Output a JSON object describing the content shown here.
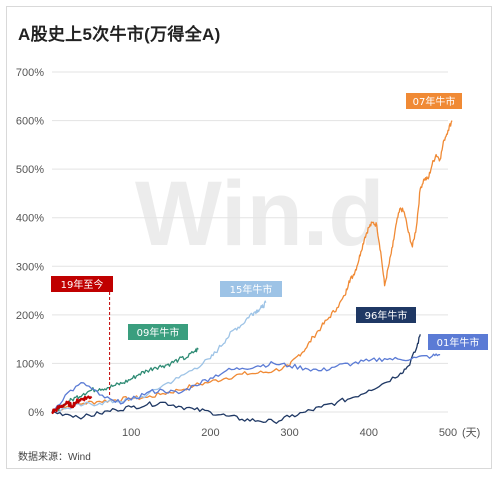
{
  "title": "A股史上5次牛市(万得全A)",
  "source_prefix": "数据来源：",
  "source_name": "Wind",
  "watermark": "Win.d",
  "chart_data": {
    "type": "line",
    "title": "A股史上5次牛市(万得全A)",
    "xlabel": "",
    "ylabel": "",
    "x_unit_label": "(天)",
    "xlim": [
      0,
      500
    ],
    "ylim": [
      0,
      700
    ],
    "x_ticks": [
      100,
      200,
      300,
      400,
      500
    ],
    "y_ticks": [
      0,
      100,
      200,
      300,
      400,
      500,
      600,
      700
    ],
    "y_tick_labels": [
      "0%",
      "100%",
      "200%",
      "300%",
      "400%",
      "500%",
      "600%",
      "700%"
    ],
    "grid": true,
    "series": [
      {
        "name": "07年牛市",
        "color": "#F08A35",
        "label_color": "#F08A35",
        "x": [
          0,
          20,
          40,
          60,
          80,
          100,
          120,
          140,
          160,
          180,
          200,
          220,
          240,
          260,
          280,
          300,
          310,
          320,
          330,
          340,
          350,
          360,
          370,
          375,
          380,
          385,
          390,
          395,
          400,
          405,
          410,
          415,
          420,
          425,
          430,
          435,
          440,
          445,
          450,
          455,
          460,
          465,
          470,
          475,
          480,
          485,
          490,
          495,
          500,
          505
        ],
        "y": [
          0,
          12,
          18,
          22,
          25,
          28,
          30,
          38,
          45,
          55,
          62,
          70,
          78,
          80,
          85,
          95,
          115,
          130,
          155,
          175,
          195,
          215,
          240,
          270,
          280,
          300,
          330,
          360,
          380,
          390,
          385,
          330,
          260,
          300,
          340,
          390,
          420,
          410,
          370,
          340,
          380,
          460,
          480,
          480,
          510,
          530,
          520,
          560,
          580,
          600
        ]
      },
      {
        "name": "15年牛市",
        "color": "#9DC3E6",
        "label_color": "#9DC3E6",
        "x": [
          0,
          20,
          40,
          60,
          80,
          100,
          120,
          140,
          160,
          180,
          200,
          210,
          220,
          230,
          240,
          250,
          255,
          260,
          265,
          270
        ],
        "y": [
          0,
          8,
          15,
          18,
          22,
          25,
          35,
          55,
          70,
          90,
          110,
          130,
          150,
          170,
          180,
          200,
          205,
          210,
          215,
          225
        ]
      },
      {
        "name": "09年牛市",
        "color": "#2E8B74",
        "label_color": "#3A9E7E",
        "x": [
          0,
          10,
          20,
          30,
          40,
          50,
          60,
          70,
          80,
          90,
          100,
          110,
          120,
          130,
          140,
          150,
          160,
          170,
          180,
          185
        ],
        "y": [
          0,
          10,
          20,
          30,
          38,
          45,
          48,
          50,
          55,
          60,
          68,
          78,
          85,
          92,
          95,
          100,
          108,
          112,
          125,
          130
        ]
      },
      {
        "name": "96年牛市",
        "color": "#1F3864",
        "label_color": "#1F3864",
        "x": [
          0,
          20,
          40,
          60,
          80,
          100,
          120,
          140,
          160,
          180,
          200,
          220,
          240,
          260,
          280,
          300,
          320,
          340,
          360,
          380,
          400,
          420,
          440,
          450,
          460,
          465
        ],
        "y": [
          0,
          -5,
          -10,
          -3,
          5,
          10,
          15,
          20,
          12,
          5,
          0,
          -8,
          -15,
          -18,
          -20,
          -10,
          0,
          10,
          20,
          30,
          45,
          60,
          80,
          95,
          130,
          160
        ]
      },
      {
        "name": "01年牛市",
        "color": "#5B7BD5",
        "label_color": "#5B7BD5",
        "x": [
          0,
          20,
          40,
          60,
          80,
          100,
          120,
          140,
          160,
          180,
          200,
          220,
          240,
          260,
          280,
          300,
          320,
          340,
          360,
          380,
          400,
          420,
          440,
          460,
          480,
          490
        ],
        "y": [
          0,
          40,
          60,
          35,
          20,
          25,
          40,
          45,
          38,
          55,
          70,
          85,
          90,
          95,
          100,
          95,
          90,
          85,
          95,
          100,
          105,
          110,
          108,
          112,
          115,
          118
        ]
      },
      {
        "name": "19年至今",
        "color": "#C00000",
        "label_color": "#C00000",
        "x": [
          0,
          5,
          10,
          15,
          20,
          25,
          30,
          35,
          40,
          45,
          50
        ],
        "y": [
          0,
          5,
          10,
          15,
          18,
          12,
          20,
          25,
          28,
          30,
          32
        ]
      }
    ]
  }
}
